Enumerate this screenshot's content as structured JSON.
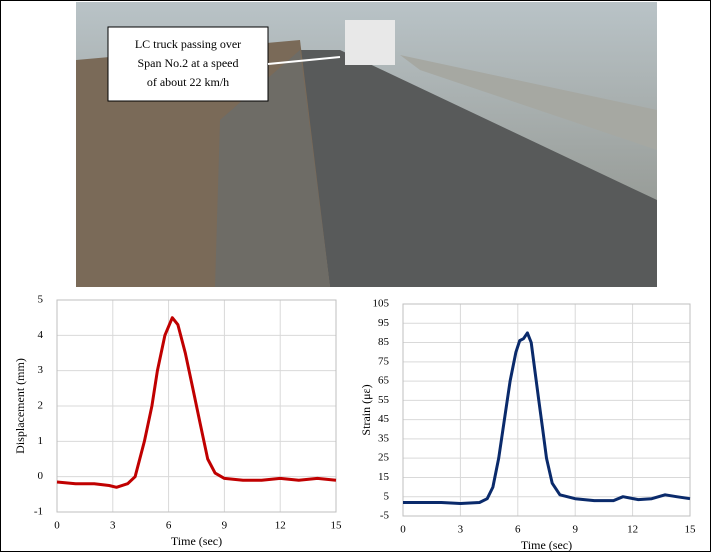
{
  "photo": {
    "annotation": [
      "LC truck passing over",
      "Span No.2 at a speed",
      "of about 22 km/h"
    ]
  },
  "chart_data": [
    {
      "type": "line",
      "xlabel": "Time (sec)",
      "ylabel": "Displacement (mm)",
      "xlim": [
        0,
        15
      ],
      "xticks": [
        0,
        3,
        6,
        9,
        12,
        15
      ],
      "ylim": [
        -1,
        5
      ],
      "yticks": [
        -1,
        0,
        1,
        2,
        3,
        4,
        5
      ],
      "grid": true,
      "series": [
        {
          "color": "#c00000",
          "x": [
            0,
            1,
            2,
            2.8,
            3.2,
            3.8,
            4.2,
            4.7,
            5.1,
            5.4,
            5.8,
            6.2,
            6.5,
            6.9,
            7.3,
            7.7,
            8.1,
            8.5,
            9,
            10,
            11,
            12,
            13,
            14,
            15
          ],
          "values": [
            -0.15,
            -0.2,
            -0.2,
            -0.25,
            -0.3,
            -0.2,
            0,
            1,
            2,
            3,
            4,
            4.5,
            4.3,
            3.5,
            2.5,
            1.5,
            0.5,
            0.1,
            -0.05,
            -0.1,
            -0.1,
            -0.05,
            -0.1,
            -0.05,
            -0.1
          ]
        }
      ]
    },
    {
      "type": "line",
      "xlabel": "Time (sec)",
      "ylabel": "Strain (με)",
      "xlim": [
        0,
        15
      ],
      "xticks": [
        0,
        3,
        6,
        9,
        12,
        15
      ],
      "ylim": [
        -5,
        105
      ],
      "yticks": [
        -5,
        5,
        15,
        25,
        35,
        45,
        55,
        65,
        75,
        85,
        95,
        105
      ],
      "grid": true,
      "series": [
        {
          "color": "#0a2a6b",
          "x": [
            0,
            1,
            2,
            3,
            4,
            4.4,
            4.7,
            5,
            5.3,
            5.6,
            5.9,
            6.1,
            6.3,
            6.5,
            6.7,
            6.9,
            7.1,
            7.3,
            7.5,
            7.8,
            8.2,
            9,
            10,
            11,
            11.5,
            12.3,
            13,
            13.7,
            14.3,
            15
          ],
          "values": [
            2,
            2,
            2,
            1.5,
            2,
            4,
            10,
            25,
            45,
            65,
            80,
            86,
            87,
            90,
            85,
            70,
            55,
            40,
            25,
            12,
            6,
            4,
            3,
            3,
            5,
            3.5,
            4,
            6,
            5,
            4
          ]
        }
      ]
    }
  ]
}
